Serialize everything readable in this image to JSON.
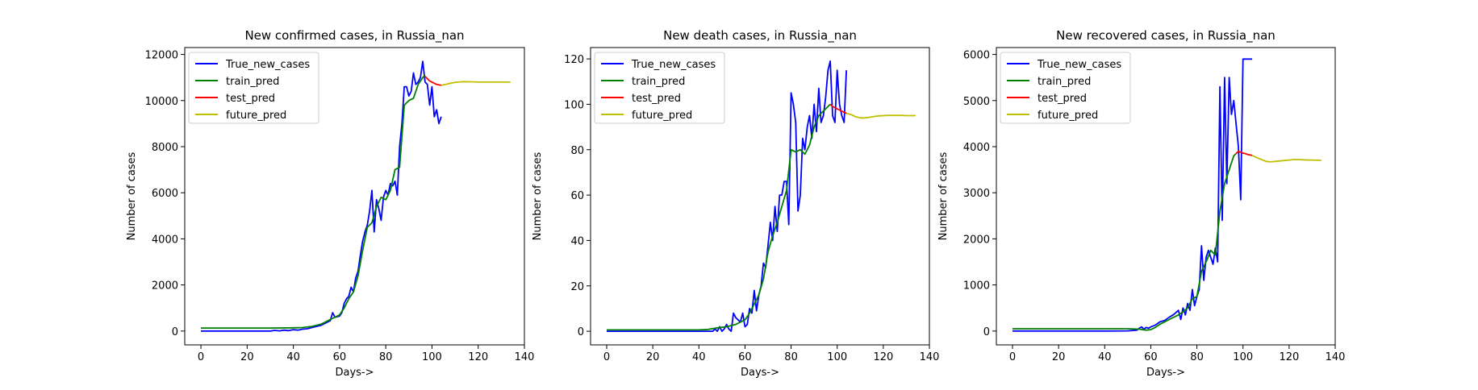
{
  "chart_data": [
    {
      "type": "line",
      "title": "New confirmed cases, in Russia_nan",
      "xlabel": "Days->",
      "ylabel": "Number of cases",
      "xlim": [
        -7,
        140
      ],
      "ylim": [
        -600,
        12300
      ],
      "xticks": [
        0,
        20,
        40,
        60,
        80,
        100,
        120,
        140
      ],
      "yticks": [
        0,
        2000,
        4000,
        6000,
        8000,
        10000,
        12000
      ],
      "ytick_labels": [
        "0",
        "2000",
        "4000",
        "6000",
        "8000",
        "10000",
        "12000"
      ],
      "grid": false,
      "legend": "top-left",
      "series": [
        {
          "name": "True_new_cases",
          "color": "#0000ff",
          "x": [
            0,
            10,
            20,
            30,
            32,
            34,
            36,
            38,
            40,
            42,
            44,
            46,
            48,
            50,
            52,
            54,
            56,
            57,
            58,
            60,
            61,
            62,
            63,
            64,
            65,
            66,
            67,
            68,
            69,
            70,
            71,
            72,
            73,
            74,
            75,
            76,
            77,
            78,
            79,
            80,
            81,
            82,
            83,
            84,
            85,
            86,
            87,
            88,
            89,
            90,
            91,
            92,
            93,
            94,
            95,
            96,
            97,
            98,
            99,
            100,
            101,
            102,
            103,
            104
          ],
          "y": [
            0,
            0,
            0,
            0,
            30,
            10,
            40,
            20,
            60,
            40,
            80,
            100,
            150,
            200,
            250,
            350,
            450,
            800,
            600,
            650,
            800,
            1200,
            1400,
            1500,
            1900,
            1700,
            2300,
            2600,
            3300,
            3900,
            4300,
            4600,
            5200,
            6100,
            4300,
            5700,
            5300,
            4800,
            5800,
            6100,
            5900,
            6400,
            6300,
            6500,
            5900,
            8000,
            9000,
            10600,
            10600,
            10200,
            10400,
            11200,
            10700,
            10800,
            11000,
            11700,
            10800,
            10700,
            9800,
            10600,
            9300,
            9600,
            9000,
            9300
          ]
        },
        {
          "name": "train_pred",
          "color": "#008000",
          "x": [
            0,
            10,
            20,
            30,
            40,
            44,
            48,
            52,
            56,
            60,
            62,
            64,
            66,
            68,
            70,
            72,
            74,
            76,
            78,
            80,
            82,
            84,
            86,
            88,
            90,
            92,
            94,
            96,
            97
          ],
          "y": [
            130,
            130,
            130,
            130,
            140,
            150,
            200,
            300,
            500,
            700,
            1000,
            1400,
            1700,
            2400,
            3500,
            4500,
            4700,
            5400,
            5800,
            5700,
            6100,
            7000,
            7100,
            9800,
            10000,
            10100,
            10700,
            11000,
            11100
          ]
        },
        {
          "name": "test_pred",
          "color": "#ff0000",
          "x": [
            97,
            98,
            99,
            100,
            101,
            102,
            103,
            104
          ],
          "y": [
            11050,
            10950,
            10850,
            10800,
            10750,
            10700,
            10680,
            10660
          ]
        },
        {
          "name": "future_pred",
          "color": "#bfbf00",
          "x": [
            104,
            106,
            108,
            110,
            112,
            114,
            116,
            118,
            120,
            122,
            124,
            126,
            128,
            130,
            132,
            134
          ],
          "y": [
            10660,
            10700,
            10750,
            10790,
            10810,
            10820,
            10815,
            10810,
            10800,
            10800,
            10800,
            10800,
            10800,
            10800,
            10800,
            10800
          ]
        }
      ]
    },
    {
      "type": "line",
      "title": "New death cases, in Russia_nan",
      "xlabel": "Days->",
      "ylabel": "Number of cases",
      "xlim": [
        -7,
        140
      ],
      "ylim": [
        -6,
        125
      ],
      "xticks": [
        0,
        20,
        40,
        60,
        80,
        100,
        120,
        140
      ],
      "yticks": [
        0,
        20,
        40,
        60,
        80,
        100,
        120
      ],
      "ytick_labels": [
        "0",
        "20",
        "40",
        "60",
        "80",
        "100",
        "120"
      ],
      "grid": false,
      "legend": "top-left",
      "series": [
        {
          "name": "True_new_cases",
          "color": "#0000ff",
          "x": [
            0,
            20,
            40,
            46,
            47,
            48,
            49,
            50,
            51,
            52,
            53,
            54,
            55,
            56,
            57,
            58,
            59,
            60,
            61,
            62,
            63,
            64,
            65,
            66,
            67,
            68,
            69,
            70,
            71,
            72,
            73,
            74,
            75,
            76,
            77,
            78,
            79,
            80,
            81,
            82,
            83,
            84,
            85,
            86,
            87,
            88,
            89,
            90,
            91,
            92,
            93,
            94,
            95,
            96,
            97,
            98,
            99,
            100,
            101,
            102,
            103,
            104
          ],
          "y": [
            0,
            0,
            0,
            0,
            1,
            0,
            2,
            0,
            1,
            3,
            1,
            0,
            8,
            6,
            5,
            4,
            8,
            2,
            3,
            10,
            8,
            18,
            9,
            16,
            20,
            30,
            28,
            38,
            48,
            40,
            55,
            44,
            60,
            60,
            66,
            66,
            47,
            105,
            100,
            92,
            53,
            60,
            85,
            80,
            90,
            95,
            85,
            100,
            88,
            107,
            92,
            95,
            103,
            115,
            119,
            95,
            92,
            115,
            100,
            95,
            92,
            115
          ]
        },
        {
          "name": "train_pred",
          "color": "#008000",
          "x": [
            0,
            10,
            20,
            30,
            40,
            44,
            48,
            52,
            56,
            60,
            62,
            64,
            66,
            68,
            70,
            72,
            74,
            76,
            78,
            80,
            82,
            84,
            86,
            88,
            90,
            92,
            94,
            96,
            97
          ],
          "y": [
            0.6,
            0.6,
            0.6,
            0.6,
            0.6,
            0.8,
            1.5,
            2,
            3,
            5,
            8,
            12,
            16,
            23,
            35,
            42,
            48,
            55,
            62,
            80,
            79,
            80,
            78,
            82,
            90,
            95,
            97,
            99,
            100
          ]
        },
        {
          "name": "test_pred",
          "color": "#ff0000",
          "x": [
            97,
            98,
            99,
            100,
            101,
            102,
            103,
            104
          ],
          "y": [
            100,
            99,
            98.5,
            98,
            97.5,
            97,
            96.5,
            96
          ]
        },
        {
          "name": "future_pred",
          "color": "#bfbf00",
          "x": [
            104,
            106,
            108,
            110,
            112,
            114,
            116,
            118,
            120,
            122,
            124,
            126,
            128,
            130,
            132,
            134
          ],
          "y": [
            96,
            95.5,
            94.5,
            94,
            94,
            94.3,
            94.6,
            94.9,
            95,
            95.1,
            95.1,
            95.1,
            95.1,
            95,
            95,
            95
          ]
        }
      ]
    },
    {
      "type": "line",
      "title": "New recovered cases, in Russia_nan",
      "xlabel": "Days->",
      "ylabel": "Number of cases",
      "xlim": [
        -7,
        140
      ],
      "ylim": [
        -300,
        6150
      ],
      "xticks": [
        0,
        20,
        40,
        60,
        80,
        100,
        120,
        140
      ],
      "yticks": [
        0,
        1000,
        2000,
        3000,
        4000,
        5000,
        6000
      ],
      "ytick_labels": [
        "0",
        "1000",
        "2000",
        "3000",
        "4000",
        "5000",
        "6000"
      ],
      "grid": false,
      "legend": "top-left",
      "series": [
        {
          "name": "True_new_cases",
          "color": "#0000ff",
          "x": [
            0,
            20,
            40,
            50,
            54,
            55,
            56,
            57,
            58,
            59,
            60,
            62,
            64,
            66,
            68,
            70,
            72,
            73,
            74,
            75,
            76,
            77,
            78,
            79,
            80,
            81,
            82,
            83,
            84,
            85,
            86,
            87,
            88,
            89,
            90,
            91,
            92,
            93,
            94,
            95,
            96,
            97,
            98,
            99,
            100,
            101,
            102,
            103,
            104
          ],
          "y": [
            0,
            0,
            0,
            5,
            20,
            60,
            90,
            40,
            80,
            60,
            90,
            130,
            200,
            230,
            300,
            360,
            450,
            250,
            500,
            350,
            600,
            450,
            900,
            550,
            750,
            900,
            1850,
            1100,
            1600,
            1750,
            1600,
            1450,
            1800,
            1500,
            5300,
            2400,
            5500,
            3200,
            5500,
            4700,
            5000,
            4500,
            4000,
            2850,
            5900,
            5900,
            5900,
            5900,
            5900
          ]
        },
        {
          "name": "train_pred",
          "color": "#008000",
          "x": [
            0,
            10,
            20,
            30,
            40,
            50,
            55,
            58,
            60,
            62,
            64,
            66,
            68,
            70,
            72,
            74,
            76,
            78,
            80,
            82,
            84,
            86,
            88,
            90,
            92,
            94,
            96,
            97
          ],
          "y": [
            50,
            50,
            50,
            50,
            50,
            50,
            40,
            20,
            30,
            80,
            150,
            200,
            250,
            300,
            350,
            420,
            500,
            700,
            750,
            1300,
            1500,
            1750,
            1650,
            2600,
            3200,
            3500,
            3800,
            3850
          ]
        },
        {
          "name": "test_pred",
          "color": "#ff0000",
          "x": [
            97,
            98,
            99,
            100,
            101,
            102,
            103,
            104
          ],
          "y": [
            3850,
            3900,
            3880,
            3860,
            3850,
            3830,
            3820,
            3810
          ]
        },
        {
          "name": "future_pred",
          "color": "#bfbf00",
          "x": [
            104,
            106,
            108,
            110,
            112,
            114,
            116,
            118,
            120,
            122,
            124,
            126,
            128,
            130,
            132,
            134
          ],
          "y": [
            3810,
            3760,
            3720,
            3680,
            3670,
            3680,
            3690,
            3700,
            3710,
            3720,
            3720,
            3715,
            3710,
            3710,
            3705,
            3705
          ]
        }
      ]
    }
  ]
}
